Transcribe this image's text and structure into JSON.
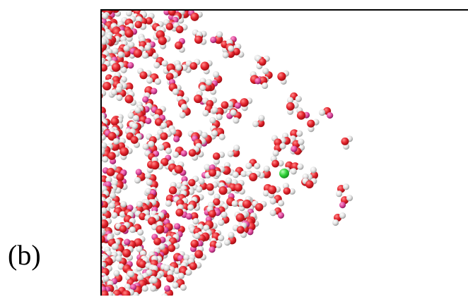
{
  "figure": {
    "panel_label": "(b)"
  },
  "snapshot": {
    "molecule_count": 430,
    "colors": {
      "oxygen": "#e3222b",
      "oxygen_highlight": "#ff8a8a",
      "oxygen_shade": "#9b0d12",
      "hydrogen": "#e2e2e2",
      "hydrogen_highlight": "#ffffff",
      "hydrogen_shade": "#9a9a9a",
      "pink_hydrogen": "#e04ba0",
      "solute": "#2fd339",
      "frame": "#000000"
    }
  }
}
